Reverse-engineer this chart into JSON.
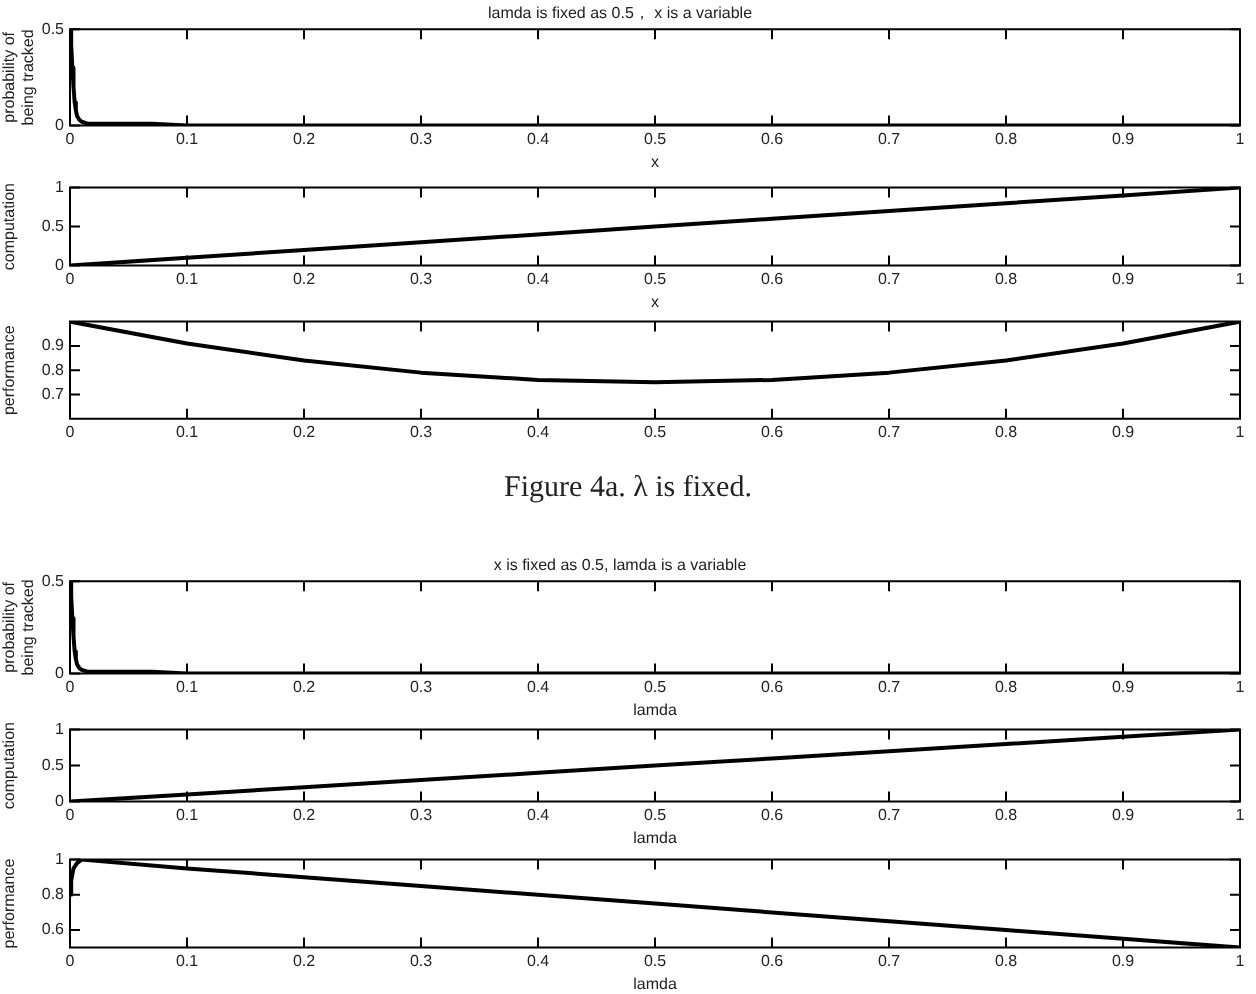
{
  "chart_data": [
    {
      "type": "line",
      "title": "lamda is fixed as 0.5， x is a variable",
      "xlabel": "x",
      "ylabel": "probability of being tracked",
      "x": [
        0,
        0.001,
        0.002,
        0.003,
        0.004,
        0.005,
        0.006,
        0.008,
        0.01,
        0.015,
        0.02,
        0.04,
        0.07,
        0.1,
        0.5,
        1
      ],
      "series": [
        {
          "color": "#000000",
          "values": [
            0.5,
            0.42,
            0.3,
            0.2,
            0.12,
            0.08,
            0.05,
            0.03,
            0.02,
            0.01,
            0.01,
            0.01,
            0.01,
            0,
            0,
            0
          ]
        }
      ],
      "xlim": [
        0,
        1
      ],
      "xticks": [
        0,
        0.1,
        0.2,
        0.3,
        0.4,
        0.5,
        0.6,
        0.7,
        0.8,
        0.9,
        1
      ],
      "ylim": [
        0,
        0.5
      ],
      "yticks": [
        0,
        0.5
      ]
    },
    {
      "type": "line",
      "xlabel": "x",
      "ylabel": "computation",
      "x": [
        0,
        0.1,
        0.2,
        0.3,
        0.4,
        0.5,
        0.6,
        0.7,
        0.8,
        0.9,
        1
      ],
      "series": [
        {
          "color": "#000000",
          "values": [
            0,
            0.1,
            0.2,
            0.3,
            0.4,
            0.5,
            0.6,
            0.7,
            0.8,
            0.9,
            1
          ]
        }
      ],
      "xlim": [
        0,
        1
      ],
      "xticks": [
        0,
        0.1,
        0.2,
        0.3,
        0.4,
        0.5,
        0.6,
        0.7,
        0.8,
        0.9,
        1
      ],
      "ylim": [
        0,
        1
      ],
      "yticks": [
        0,
        0.5,
        1
      ]
    },
    {
      "type": "line",
      "ylabel": "performance",
      "annotations": [
        "Figure 4a. λ is fixed."
      ],
      "x": [
        0,
        0.1,
        0.2,
        0.3,
        0.4,
        0.5,
        0.6,
        0.7,
        0.8,
        0.9,
        1
      ],
      "series": [
        {
          "color": "#000000",
          "values": [
            1,
            0.91,
            0.84,
            0.79,
            0.76,
            0.75,
            0.76,
            0.79,
            0.84,
            0.91,
            1
          ]
        }
      ],
      "xlim": [
        0,
        1
      ],
      "xticks": [
        0,
        0.1,
        0.2,
        0.3,
        0.4,
        0.5,
        0.6,
        0.7,
        0.8,
        0.9,
        1
      ],
      "ylim": [
        0.6,
        1
      ],
      "yticks": [
        0.7,
        0.8,
        0.9
      ]
    },
    {
      "type": "line",
      "title": "x is fixed as 0.5, lamda is a variable",
      "xlabel": "lamda",
      "ylabel": "probability of being tracked",
      "x": [
        0,
        0.001,
        0.002,
        0.003,
        0.004,
        0.005,
        0.006,
        0.008,
        0.01,
        0.015,
        0.02,
        0.04,
        0.07,
        0.1,
        0.5,
        1
      ],
      "series": [
        {
          "color": "#000000",
          "values": [
            0.5,
            0.42,
            0.3,
            0.2,
            0.12,
            0.08,
            0.05,
            0.03,
            0.02,
            0.01,
            0.01,
            0.01,
            0.01,
            0,
            0,
            0
          ]
        }
      ],
      "xlim": [
        0,
        1
      ],
      "xticks": [
        0,
        0.1,
        0.2,
        0.3,
        0.4,
        0.5,
        0.6,
        0.7,
        0.8,
        0.9,
        1
      ],
      "ylim": [
        0,
        0.5
      ],
      "yticks": [
        0,
        0.5
      ]
    },
    {
      "type": "line",
      "xlabel": "lamda",
      "ylabel": "computation",
      "x": [
        0,
        0.1,
        0.2,
        0.3,
        0.4,
        0.5,
        0.6,
        0.7,
        0.8,
        0.9,
        1
      ],
      "series": [
        {
          "color": "#000000",
          "values": [
            0,
            0.1,
            0.2,
            0.3,
            0.4,
            0.5,
            0.6,
            0.7,
            0.8,
            0.9,
            1
          ]
        }
      ],
      "xlim": [
        0,
        1
      ],
      "xticks": [
        0,
        0.1,
        0.2,
        0.3,
        0.4,
        0.5,
        0.6,
        0.7,
        0.8,
        0.9,
        1
      ],
      "ylim": [
        0,
        1
      ],
      "yticks": [
        0,
        0.5,
        1
      ]
    },
    {
      "type": "line",
      "xlabel": "lamda",
      "ylabel": "performance",
      "x": [
        0,
        0.001,
        0.003,
        0.006,
        0.01,
        0.1,
        0.2,
        0.3,
        0.4,
        0.5,
        0.6,
        0.7,
        0.8,
        0.9,
        1
      ],
      "series": [
        {
          "color": "#000000",
          "values": [
            0.8,
            0.88,
            0.95,
            0.98,
            1,
            0.95,
            0.9,
            0.85,
            0.8,
            0.75,
            0.7,
            0.65,
            0.6,
            0.55,
            0.5
          ]
        }
      ],
      "xlim": [
        0,
        1
      ],
      "xticks": [
        0,
        0.1,
        0.2,
        0.3,
        0.4,
        0.5,
        0.6,
        0.7,
        0.8,
        0.9,
        1
      ],
      "ylim": [
        0.5,
        1
      ],
      "yticks": [
        0.6,
        0.8,
        1
      ]
    }
  ]
}
